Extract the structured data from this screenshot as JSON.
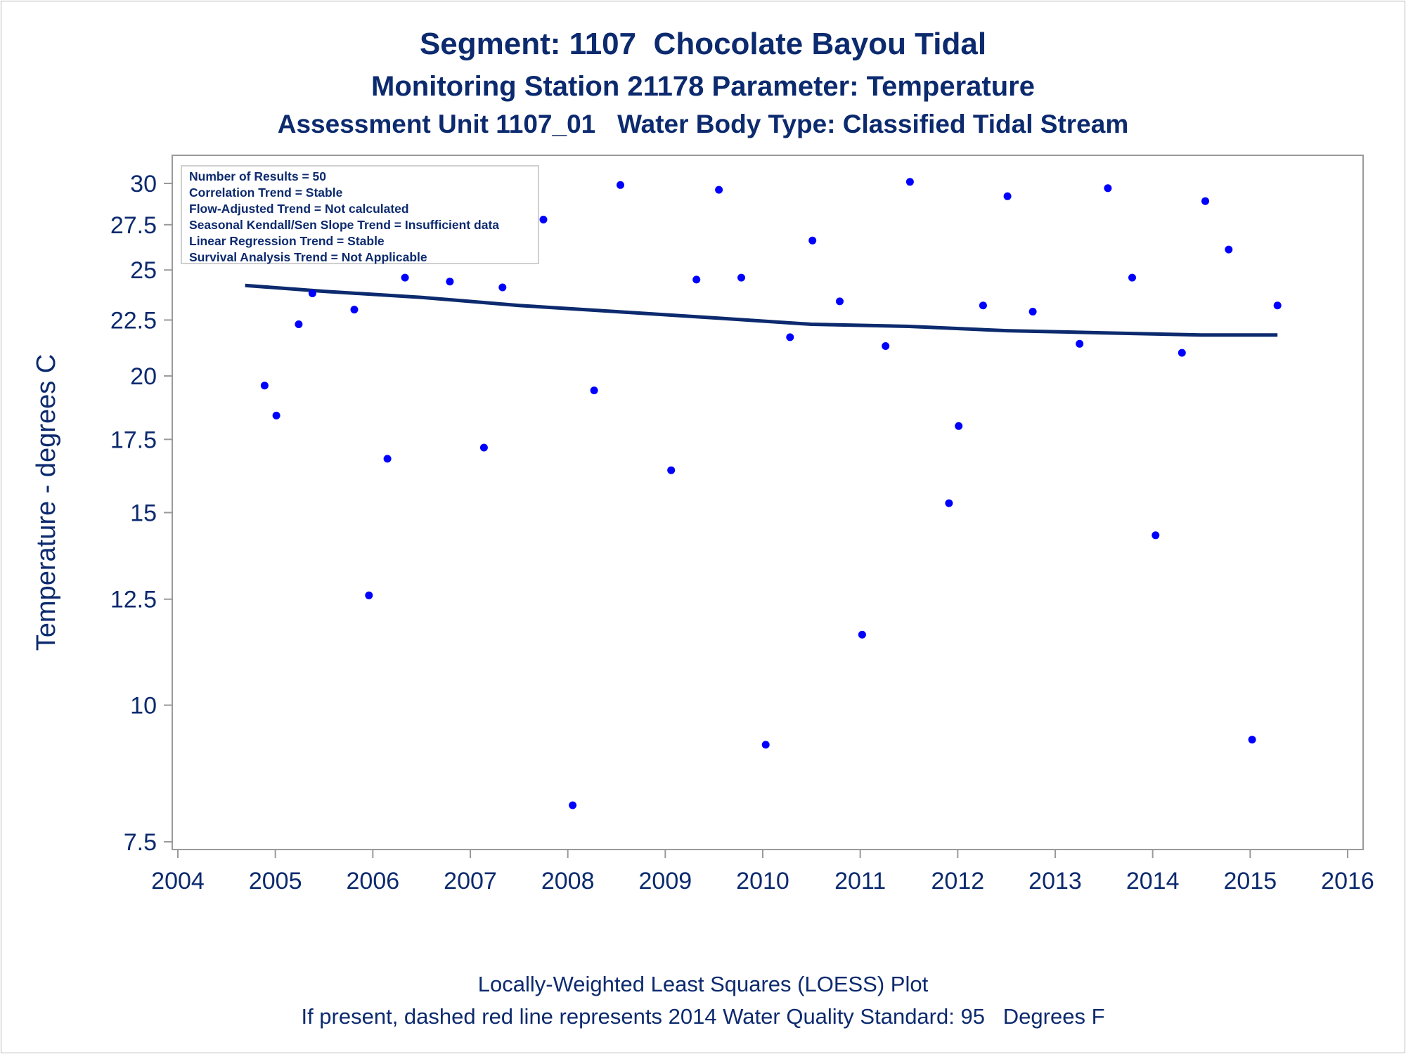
{
  "titles": {
    "line1": "Segment: 1107  Chocolate Bayou Tidal",
    "line2": "Monitoring Station 21178 Parameter: Temperature",
    "line3": "Assessment Unit 1107_01   Water Body Type: Classified Tidal Stream"
  },
  "footnotes": {
    "line1": "Locally-Weighted Least Squares (LOESS) Plot",
    "line2": "If present, dashed red line represents 2014 Water Quality Standard: 95   Degrees F"
  },
  "legend": {
    "lines": [
      "Number of Results = 50",
      "Correlation Trend = Stable",
      "Flow-Adjusted Trend = Not calculated",
      "Seasonal Kendall/Sen Slope Trend = Insufficient data",
      "Linear Regression Trend = Stable",
      "Survival Analysis Trend = Not Applicable"
    ]
  },
  "colors": {
    "text": "#0c2a6e",
    "points": "#0000ff",
    "trend_line": "#0c2a6e",
    "axis": "#9a9a9a"
  },
  "chart_data": {
    "type": "scatter",
    "title": "Segment: 1107  Chocolate Bayou Tidal",
    "xlabel": "",
    "ylabel": "Temperature - degrees C",
    "xlim": [
      2004,
      2016
    ],
    "ylim": [
      7.5,
      31
    ],
    "y_scale": "log",
    "x_ticks": [
      2004,
      2005,
      2006,
      2007,
      2008,
      2009,
      2010,
      2011,
      2012,
      2013,
      2014,
      2015,
      2016
    ],
    "y_ticks": [
      7.5,
      10,
      12.5,
      15,
      17.5,
      20,
      22.5,
      25,
      27.5,
      30
    ],
    "y_tick_labels": [
      "7.5",
      "10",
      "12.5",
      "15",
      "17.5",
      "20",
      "22.5",
      "25",
      "27.5",
      "30"
    ],
    "grid": false,
    "legend_position": "top-left",
    "series": [
      {
        "type": "scatter",
        "points": [
          [
            2004.69,
            25.6
          ],
          [
            2004.89,
            19.6
          ],
          [
            2005.01,
            18.4
          ],
          [
            2005.24,
            22.3
          ],
          [
            2005.38,
            23.8
          ],
          [
            2005.54,
            27.0
          ],
          [
            2005.59,
            27.9
          ],
          [
            2005.61,
            28.0
          ],
          [
            2005.64,
            26.7
          ],
          [
            2005.81,
            23.0
          ],
          [
            2005.96,
            12.6
          ],
          [
            2006.15,
            16.8
          ],
          [
            2006.33,
            24.6
          ],
          [
            2006.39,
            27.4
          ],
          [
            2006.47,
            29.5
          ],
          [
            2006.64,
            30.7
          ],
          [
            2006.79,
            24.4
          ],
          [
            2007.14,
            17.2
          ],
          [
            2007.33,
            24.1
          ],
          [
            2007.44,
            29.4
          ],
          [
            2007.66,
            28.8
          ],
          [
            2007.75,
            27.8
          ],
          [
            2008.05,
            8.1
          ],
          [
            2008.27,
            19.4
          ],
          [
            2008.54,
            29.9
          ],
          [
            2009.06,
            16.4
          ],
          [
            2009.32,
            24.5
          ],
          [
            2009.55,
            29.6
          ],
          [
            2009.78,
            24.6
          ],
          [
            2010.03,
            9.2
          ],
          [
            2010.28,
            21.7
          ],
          [
            2010.51,
            26.6
          ],
          [
            2010.79,
            23.4
          ],
          [
            2011.02,
            11.6
          ],
          [
            2011.26,
            21.3
          ],
          [
            2011.51,
            30.1
          ],
          [
            2011.91,
            15.3
          ],
          [
            2012.01,
            18.0
          ],
          [
            2012.26,
            23.2
          ],
          [
            2012.51,
            29.2
          ],
          [
            2012.77,
            22.9
          ],
          [
            2013.25,
            21.4
          ],
          [
            2013.54,
            29.7
          ],
          [
            2013.79,
            24.6
          ],
          [
            2014.03,
            14.3
          ],
          [
            2014.3,
            21.0
          ],
          [
            2014.54,
            28.9
          ],
          [
            2014.78,
            26.1
          ],
          [
            2015.02,
            9.3
          ],
          [
            2015.28,
            23.2
          ]
        ]
      },
      {
        "type": "line",
        "points": [
          [
            2004.69,
            24.2
          ],
          [
            2005.5,
            23.9
          ],
          [
            2006.5,
            23.6
          ],
          [
            2007.5,
            23.2
          ],
          [
            2008.5,
            22.9
          ],
          [
            2009.5,
            22.6
          ],
          [
            2010.5,
            22.3
          ],
          [
            2011.5,
            22.2
          ],
          [
            2012.5,
            22.0
          ],
          [
            2013.5,
            21.9
          ],
          [
            2014.5,
            21.8
          ],
          [
            2015.28,
            21.8
          ]
        ]
      }
    ]
  }
}
